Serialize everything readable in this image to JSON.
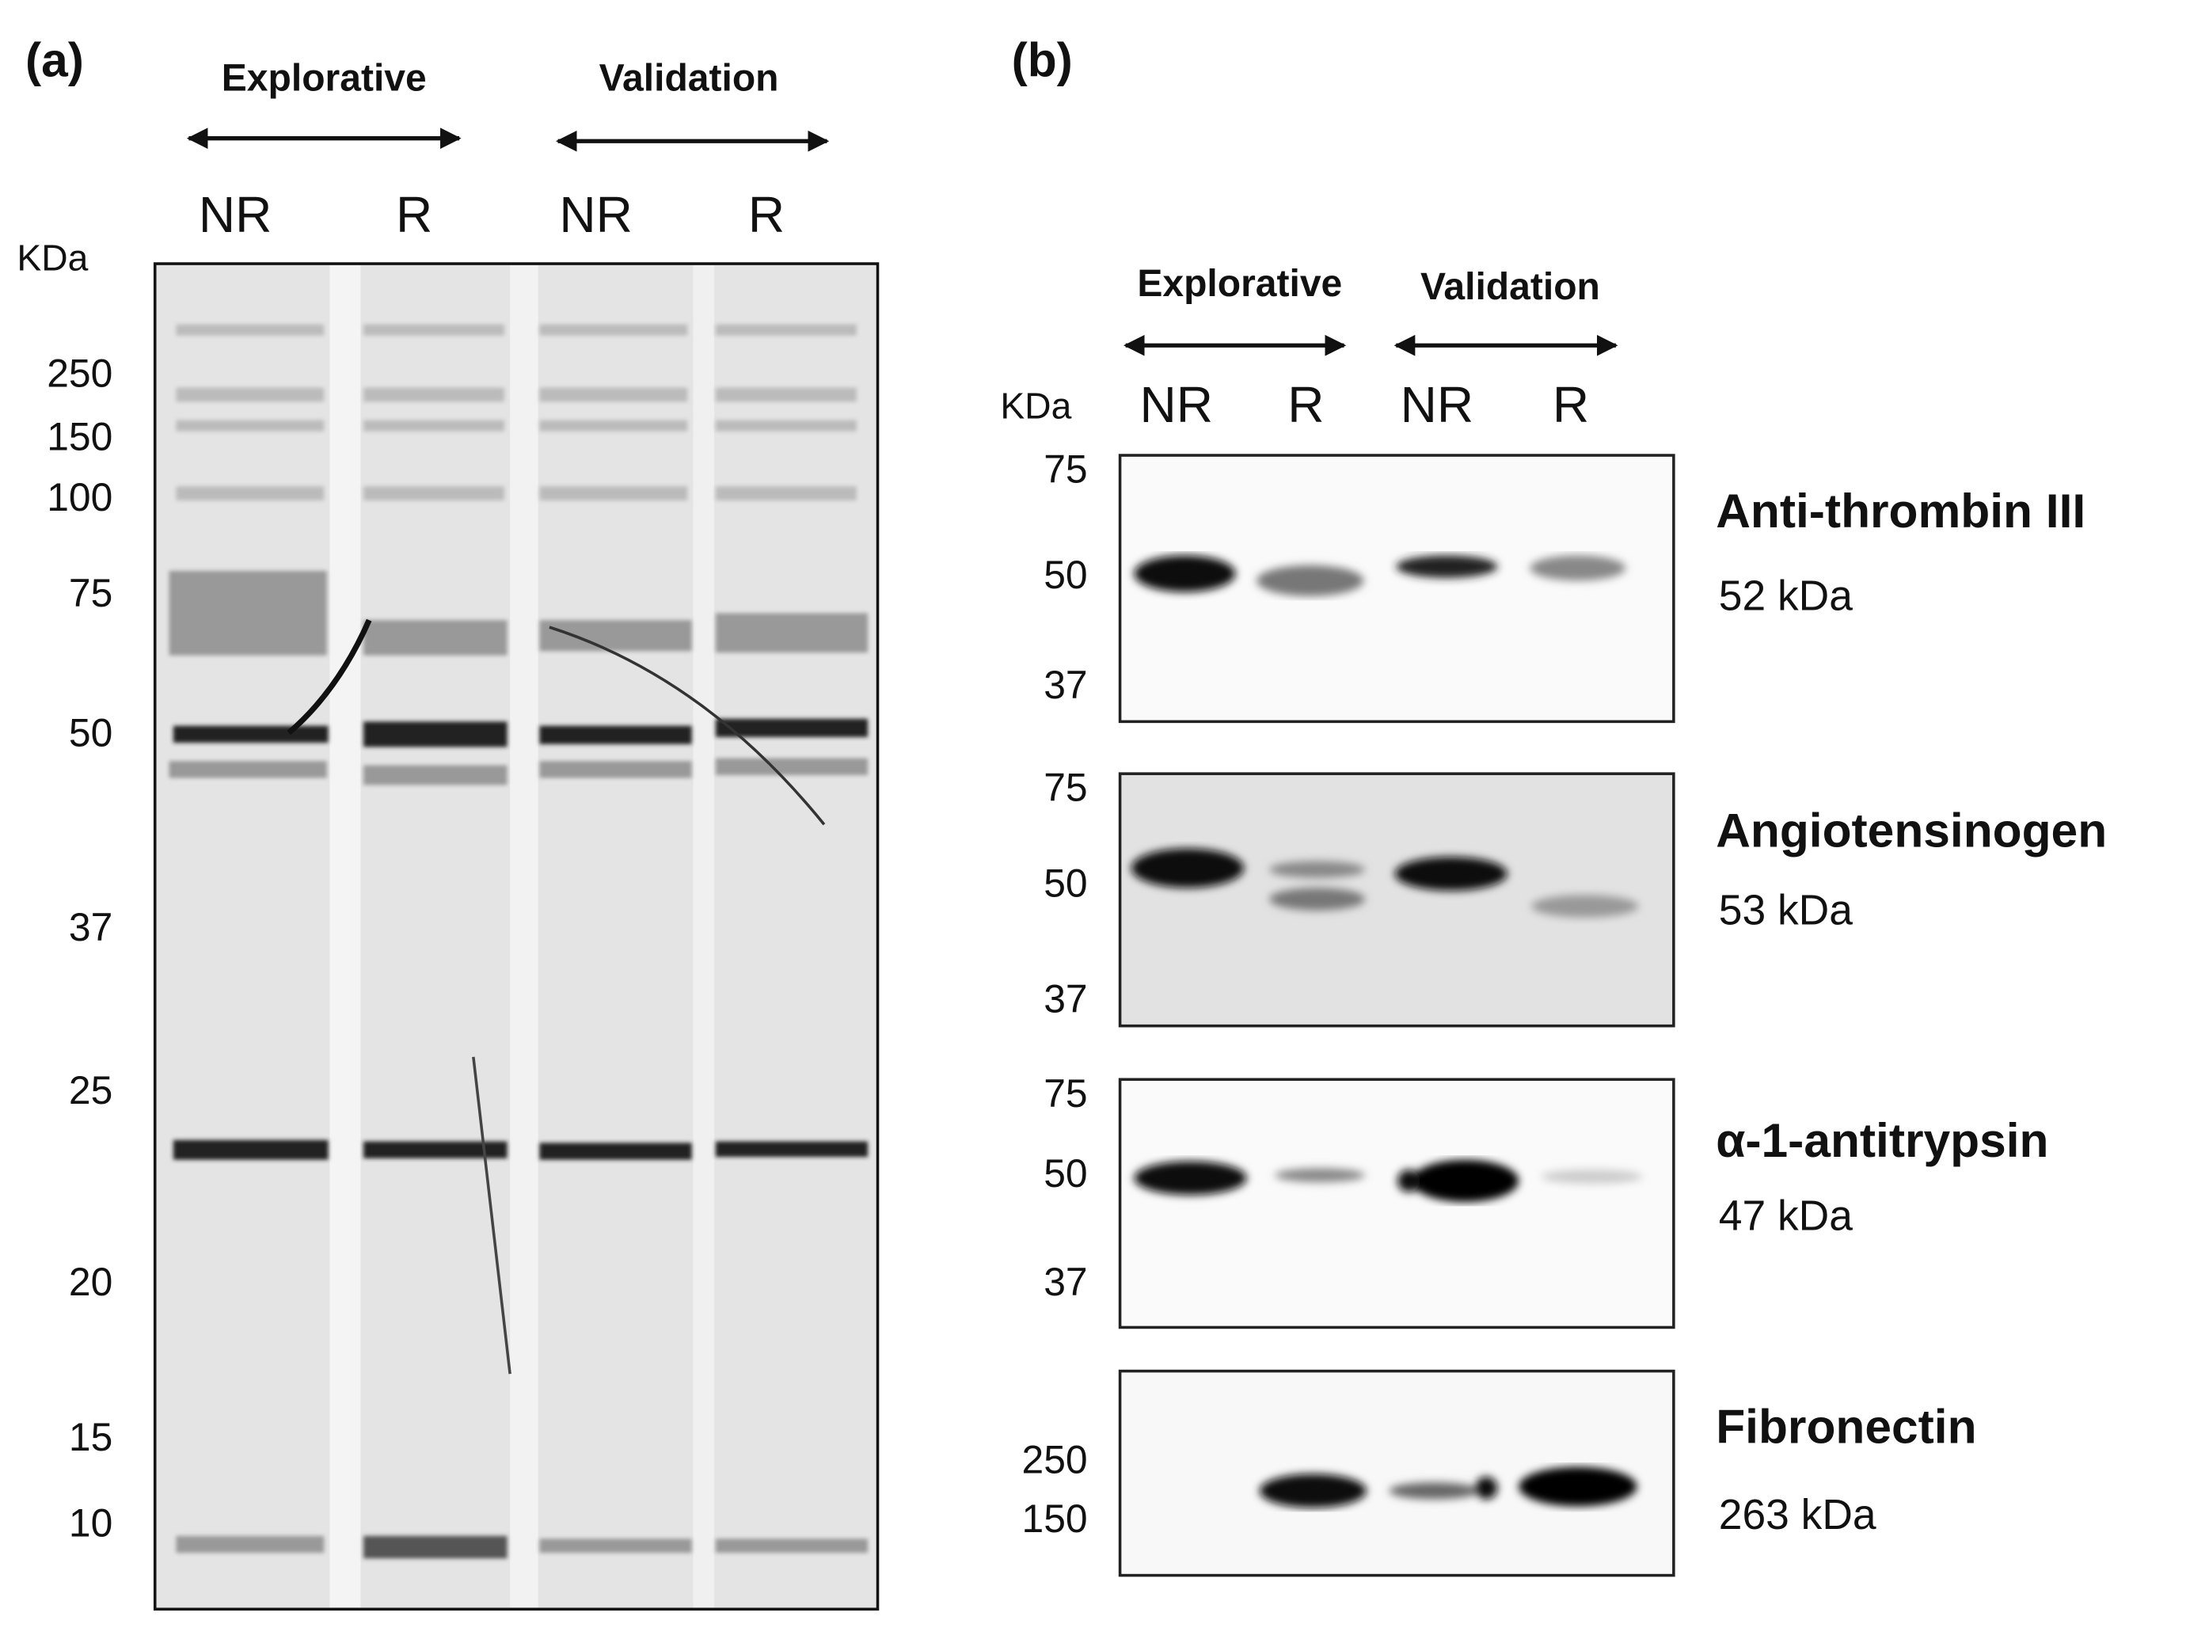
{
  "panel_a": {
    "label": "(a)",
    "groups": [
      "Explorative",
      "Validation"
    ],
    "lanes": [
      "NR",
      "R",
      "NR",
      "R"
    ],
    "unit": "KDa",
    "markers": [
      "250",
      "150",
      "100",
      "75",
      "50",
      "37",
      "25",
      "20",
      "15",
      "10"
    ]
  },
  "panel_b": {
    "label": "(b)",
    "groups": [
      "Explorative",
      "Validation"
    ],
    "lanes": [
      "NR",
      "R",
      "NR",
      "R"
    ],
    "unit": "KDa",
    "blots": [
      {
        "name": "Anti-thrombin III",
        "size": "52 kDa",
        "markers": [
          "75",
          "50",
          "37"
        ]
      },
      {
        "name": "Angiotensinogen",
        "size": "53 kDa",
        "markers": [
          "75",
          "50",
          "37"
        ]
      },
      {
        "name": "α-1-antitrypsin",
        "size": "47 kDa",
        "markers": [
          "75",
          "50",
          "37"
        ]
      },
      {
        "name": "Fibronectin",
        "size": "263 kDa",
        "markers": [
          "250",
          "150"
        ]
      }
    ]
  }
}
